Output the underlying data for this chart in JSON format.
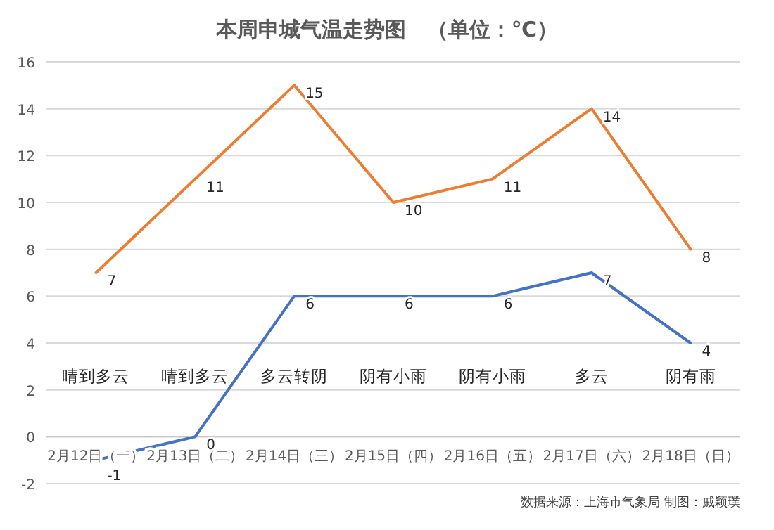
{
  "chart_data": {
    "type": "line",
    "title": "本周申城气温走势图　（单位：℃）",
    "categories": [
      "2月12日（一）",
      "2月13日（二）",
      "2月14日（三）",
      "2月15日（四）",
      "2月16日（五）",
      "2月17日（六）",
      "2月18日（日）"
    ],
    "series": [
      {
        "color": "#ed7d31",
        "values": [
          7,
          11,
          15,
          10,
          11,
          14,
          8
        ]
      },
      {
        "color": "#4472c4",
        "values": [
          -1,
          0,
          6,
          6,
          6,
          7,
          4
        ]
      }
    ],
    "ylim": [
      -2,
      16
    ],
    "yticks": [
      -2,
      0,
      2,
      4,
      6,
      8,
      10,
      12,
      14,
      16
    ],
    "grid": "y",
    "data_labels": true,
    "marker": "none",
    "line_style": "solid",
    "annotations": [
      "晴到多云",
      "晴到多云",
      "多云转阴",
      "阴有小雨",
      "阴有小雨",
      "多云",
      "阴有雨",
      "数据来源：上海市气象局 制图：戚颖璞"
    ]
  }
}
